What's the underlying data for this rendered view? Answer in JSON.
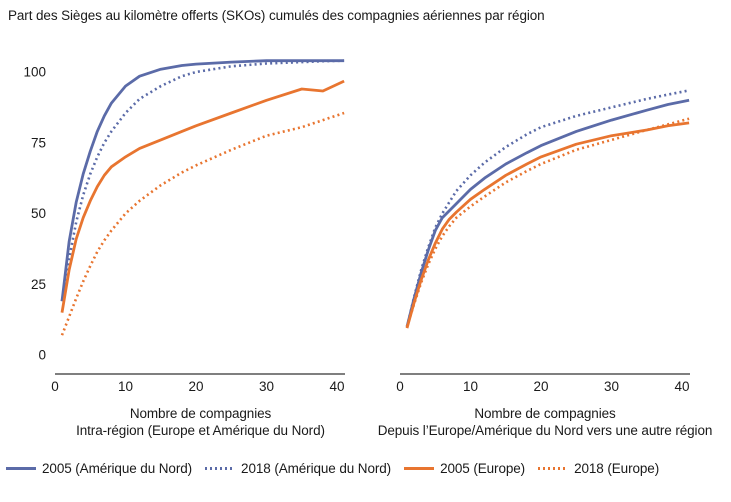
{
  "title": "Part des Sièges au kilomètre offerts (SKOs) cumulés des compagnies aériennes par région",
  "colors": {
    "north_america": "#5B6BA8",
    "europe": "#E87530",
    "axis": "#333333",
    "text": "#1A1A1A"
  },
  "legend": {
    "items": [
      {
        "label": "2005 (Amérique du Nord)",
        "color": "#5B6BA8",
        "style": "solid"
      },
      {
        "label": "2018 (Amérique du Nord)",
        "color": "#5B6BA8",
        "style": "dotted"
      },
      {
        "label": "2005 (Europe)",
        "color": "#E87530",
        "style": "solid"
      },
      {
        "label": "2018 (Europe)",
        "color": "#E87530",
        "style": "dotted"
      }
    ]
  },
  "chart_data": [
    {
      "type": "line",
      "name": "intra-region",
      "xlabel": [
        "Nombre de compagnies",
        "Intra-région (Europe et Amérique du Nord)"
      ],
      "x": [
        1,
        2,
        3,
        4,
        5,
        6,
        7,
        8,
        10,
        12,
        15,
        18,
        20,
        25,
        30,
        35,
        38,
        41
      ],
      "x_ticks": [
        0,
        10,
        20,
        30,
        40
      ],
      "y_ticks": [
        0,
        25,
        50,
        75,
        100
      ],
      "xlim": [
        0,
        41.5
      ],
      "ylim": [
        0,
        105
      ],
      "grid": false,
      "y_tick_labels_visible": true,
      "series": [
        {
          "name": "2005 (Amérique du Nord)",
          "color": "#5B6BA8",
          "style": "solid",
          "values": [
            19,
            40,
            54,
            64,
            72,
            79,
            84.5,
            89,
            95,
            98.5,
            101,
            102.3,
            102.8,
            103.5,
            104,
            104,
            104,
            104
          ]
        },
        {
          "name": "2018 (Amérique du Nord)",
          "color": "#5B6BA8",
          "style": "dotted",
          "values": [
            19,
            34,
            47,
            56.5,
            64,
            70,
            75,
            79,
            85.5,
            90.5,
            95,
            98.5,
            100,
            102,
            103,
            103.5,
            103.8,
            104
          ]
        },
        {
          "name": "2005 (Europe)",
          "color": "#E87530",
          "style": "solid",
          "values": [
            15,
            30,
            41,
            48.5,
            54.5,
            59.5,
            63.5,
            66.5,
            70,
            73,
            76,
            79,
            81,
            85.5,
            90,
            94,
            93.3,
            96.8
          ]
        },
        {
          "name": "2018 (Europe)",
          "color": "#E87530",
          "style": "dotted",
          "values": [
            7,
            13.5,
            20,
            26,
            31.5,
            36.5,
            40.5,
            44,
            50,
            54.5,
            60,
            64.5,
            67,
            72.5,
            77.5,
            80.5,
            83,
            85.5
          ]
        }
      ]
    },
    {
      "type": "line",
      "name": "inter-region",
      "xlabel": [
        "Nombre de compagnies",
        "Depuis l’Europe/Amérique du Nord vers une autre région"
      ],
      "x": [
        1,
        2,
        3,
        4,
        5,
        6,
        7,
        8,
        10,
        12,
        15,
        18,
        20,
        25,
        30,
        35,
        38,
        41
      ],
      "x_ticks": [
        0,
        10,
        20,
        30,
        40
      ],
      "y_ticks": [
        0,
        25,
        50,
        75,
        100
      ],
      "xlim": [
        0,
        41.5
      ],
      "ylim": [
        0,
        105
      ],
      "grid": false,
      "y_tick_labels_visible": false,
      "series": [
        {
          "name": "2005 (Amérique du Nord)",
          "color": "#5B6BA8",
          "style": "solid",
          "values": [
            10,
            20,
            29,
            37,
            44,
            48.5,
            51,
            53.5,
            58.5,
            62.5,
            67.5,
            71.5,
            74,
            79,
            83,
            86.5,
            88.5,
            90
          ]
        },
        {
          "name": "2018 (Amérique du Nord)",
          "color": "#5B6BA8",
          "style": "dotted",
          "values": [
            10,
            20.5,
            30,
            38,
            45,
            50,
            54,
            58,
            63.5,
            68,
            73.5,
            78,
            80.5,
            84.5,
            87.5,
            90.5,
            92,
            93.5
          ]
        },
        {
          "name": "2005 (Europe)",
          "color": "#E87530",
          "style": "solid",
          "values": [
            9.5,
            18.5,
            26.5,
            33.5,
            39.5,
            44.5,
            48,
            50.5,
            55,
            58.5,
            63.5,
            67.5,
            70,
            74.5,
            77.5,
            79.5,
            81,
            82
          ]
        },
        {
          "name": "2018 (Europe)",
          "color": "#E87530",
          "style": "dotted",
          "values": [
            10,
            18,
            25.5,
            32,
            37.5,
            42,
            45.5,
            48.5,
            52.5,
            56,
            61,
            65,
            67.5,
            72.5,
            76,
            79.5,
            81.5,
            83.5
          ]
        }
      ]
    }
  ]
}
